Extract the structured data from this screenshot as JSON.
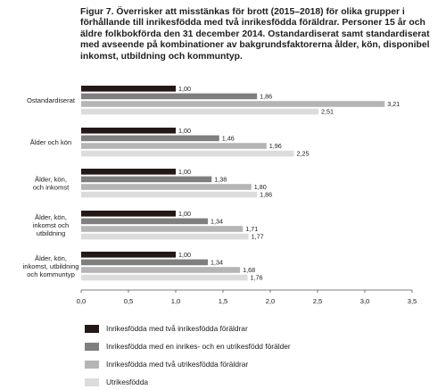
{
  "title": "Figur 7. Överrisker att misstänkas för brott (2015–2018) för olika grupper i förhållande till inrikesfödda med två inrikesfödda föräldrar. Personer 15 år och äldre folkbokförda den 31 december 2014. Ostandardiserat samt standardiserat med avseende på kombinationer av bakgrundsfaktorerna ålder, kön, disponibel inkomst, utbildning och kommuntyp.",
  "chart_data": {
    "type": "bar",
    "orientation": "horizontal",
    "categories": [
      [
        "Ostandardiserat"
      ],
      [
        "Ålder och kön"
      ],
      [
        "Ålder, kön,",
        "och inkomst"
      ],
      [
        "Ålder, kön,",
        "inkomst och",
        "utbildning"
      ],
      [
        "Ålder, kön,",
        "inkomst, utbildning",
        "och kommuntyp"
      ]
    ],
    "series": [
      {
        "name": "Inrikesfödda med två inrikesfödda föräldrar",
        "color": "#231815",
        "values": [
          1.0,
          1.0,
          1.0,
          1.0,
          1.0
        ],
        "labels": [
          "1,00",
          "1,00",
          "1,00",
          "1,00",
          "1,00"
        ]
      },
      {
        "name": "Inrikesfödda med en inrikes- och en utrikesfödd förälder",
        "color": "#7f7f7f",
        "values": [
          1.86,
          1.46,
          1.38,
          1.34,
          1.34
        ],
        "labels": [
          "1,86",
          "1,46",
          "1,38",
          "1,34",
          "1,34"
        ]
      },
      {
        "name": "Inrikesfödda med två utrikesfödda föräldrar",
        "color": "#b5b5b5",
        "values": [
          3.21,
          1.96,
          1.8,
          1.71,
          1.68
        ],
        "labels": [
          "3,21",
          "1,96",
          "1,80",
          "1,71",
          "1,68"
        ]
      },
      {
        "name": "Utrikesfödda",
        "color": "#dcdcdc",
        "values": [
          2.51,
          2.25,
          1.86,
          1.77,
          1.76
        ],
        "labels": [
          "2,51",
          "2,25",
          "1,86",
          "1,77",
          "1,76"
        ]
      }
    ],
    "xlim": [
      0,
      3.5
    ],
    "xticks": [
      0,
      0.5,
      1.0,
      1.5,
      2.0,
      2.5,
      3.0,
      3.5
    ],
    "xtick_labels": [
      "0,0",
      "0,5",
      "1,0",
      "1,5",
      "2,0",
      "2,5",
      "3,0",
      "3,5"
    ],
    "grid": false,
    "legend_position": "bottom"
  }
}
